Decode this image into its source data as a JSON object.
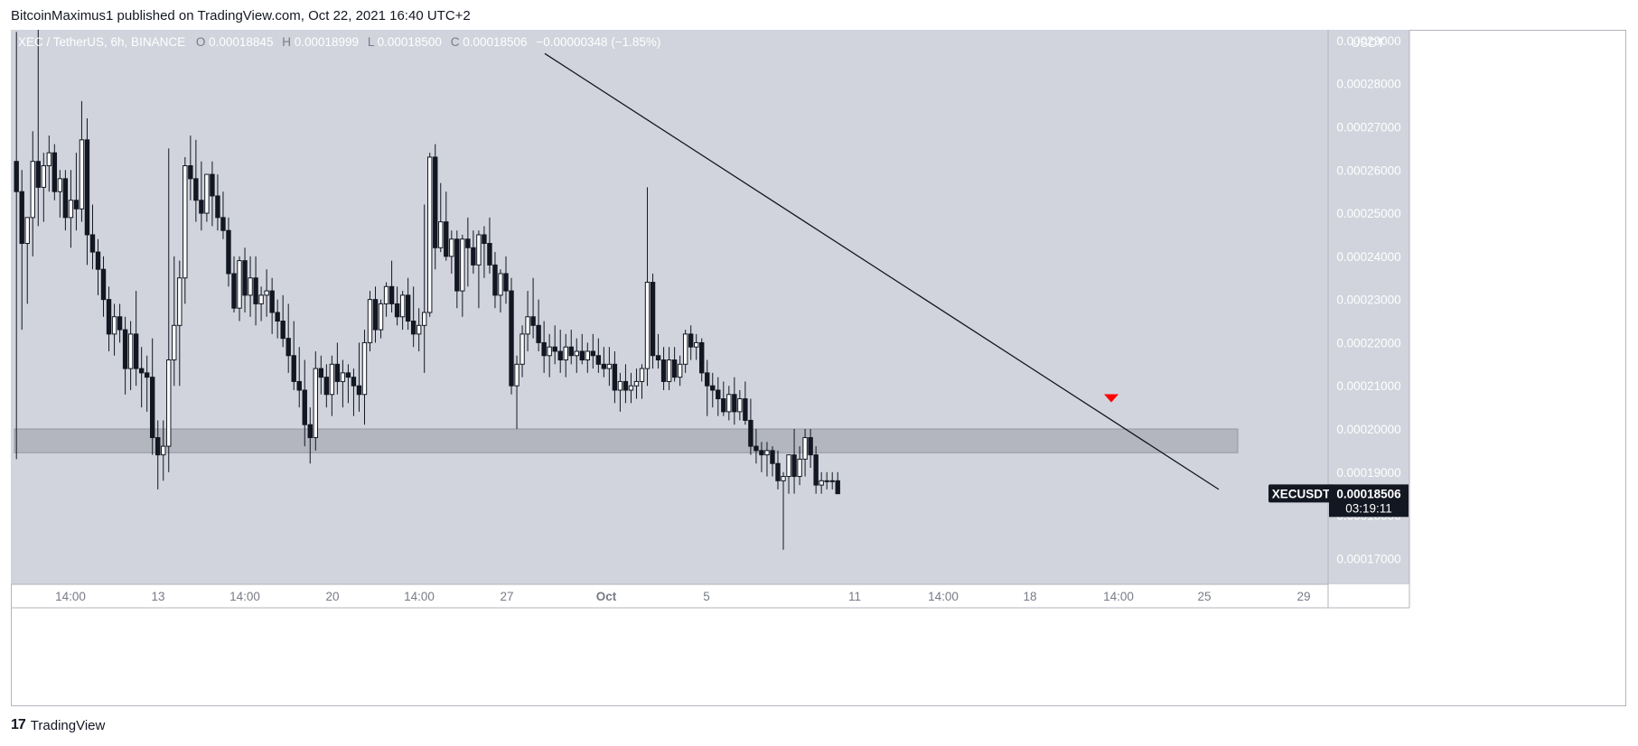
{
  "header": {
    "text": "BitcoinMaximus1 published on TradingView.com, Oct 22, 2021 16:40 UTC+2"
  },
  "footer": {
    "brand": "TradingView",
    "brand_mark": "17"
  },
  "colors": {
    "plot_bg": "#d1d4dc",
    "axis_bg": "#d1d4dc",
    "candle": "#131722",
    "up_body": "#ffffff",
    "zone": "#b3b6bf",
    "trendline": "#131722",
    "marker": "#ff0000",
    "label_bg": "#131722",
    "label_text": "#ffffff"
  },
  "chart_data": {
    "type": "candlestick",
    "symbol_line": {
      "symbol": "XEC / TetherUS, 6h, BINANCE",
      "open_key": "O",
      "open": "0.00018845",
      "high_key": "H",
      "high": "0.00018999",
      "low_key": "L",
      "low": "0.00018500",
      "close_key": "C",
      "close": "0.00018506",
      "change": "−0.00000348 (−1.85%)"
    },
    "currency": "USDT",
    "ylim": [
      0.000164,
      0.0002925
    ],
    "y_ticks": [
      "0.00017000",
      "0.00018000",
      "0.00019000",
      "0.00020000",
      "0.00021000",
      "0.00022000",
      "0.00023000",
      "0.00024000",
      "0.00025000",
      "0.00026000",
      "0.00027000",
      "0.00028000",
      "0.00029000"
    ],
    "x_ticks": [
      "14:00",
      "13",
      "14:00",
      "20",
      "14:00",
      "27",
      "Oct",
      "5",
      "11",
      "14:00",
      "18",
      "14:00",
      "25",
      "29"
    ],
    "support_zone": [
      0.0001945,
      0.0002
    ],
    "resistance_line": {
      "from_price": 0.000287,
      "to_price": 0.000186
    },
    "last_price_label": {
      "symbol": "XECUSDT",
      "price": "0.00018506",
      "countdown": "03:19:11"
    },
    "candles": [
      [
        0.000262,
        0.000292,
        0.000193,
        0.000255
      ],
      [
        0.000255,
        0.00026,
        0.000223,
        0.000243
      ],
      [
        0.000243,
        0.000248,
        0.000229,
        0.000249
      ],
      [
        0.000249,
        0.000269,
        0.00024,
        0.000262
      ],
      [
        0.000262,
        0.000296,
        0.000247,
        0.000256
      ],
      [
        0.000256,
        0.000264,
        0.000248,
        0.000261
      ],
      [
        0.000261,
        0.000268,
        0.000255,
        0.000264
      ],
      [
        0.000264,
        0.000266,
        0.000253,
        0.000255
      ],
      [
        0.000255,
        0.00026,
        0.000249,
        0.000258
      ],
      [
        0.000258,
        0.00026,
        0.000246,
        0.000249
      ],
      [
        0.000249,
        0.00026,
        0.000242,
        0.000253
      ],
      [
        0.000253,
        0.000264,
        0.000246,
        0.000251
      ],
      [
        0.000251,
        0.000276,
        0.000248,
        0.000267
      ],
      [
        0.000267,
        0.000272,
        0.000238,
        0.000245
      ],
      [
        0.000245,
        0.000252,
        0.000237,
        0.000241
      ],
      [
        0.000241,
        0.000244,
        0.000231,
        0.000237
      ],
      [
        0.000237,
        0.00024,
        0.000226,
        0.00023
      ],
      [
        0.00023,
        0.000233,
        0.000218,
        0.000222
      ],
      [
        0.000222,
        0.000229,
        0.000217,
        0.000226
      ],
      [
        0.000226,
        0.000229,
        0.00022,
        0.000223
      ],
      [
        0.000223,
        0.000226,
        0.000208,
        0.000214
      ],
      [
        0.000214,
        0.000225,
        0.000209,
        0.000222
      ],
      [
        0.000222,
        0.000232,
        0.00021,
        0.000214
      ],
      [
        0.000214,
        0.000219,
        0.000205,
        0.000213
      ],
      [
        0.000213,
        0.000217,
        0.000204,
        0.000212
      ],
      [
        0.000212,
        0.000221,
        0.000194,
        0.000198
      ],
      [
        0.000198,
        0.000202,
        0.000186,
        0.000194
      ],
      [
        0.000194,
        0.000202,
        0.000188,
        0.000196
      ],
      [
        0.000196,
        0.000265,
        0.00019,
        0.000216
      ],
      [
        0.000216,
        0.00024,
        0.00021,
        0.000224
      ],
      [
        0.000224,
        0.000239,
        0.00021,
        0.000235
      ],
      [
        0.000235,
        0.000263,
        0.000229,
        0.000261
      ],
      [
        0.000261,
        0.000268,
        0.000253,
        0.000258
      ],
      [
        0.000258,
        0.000267,
        0.000248,
        0.000253
      ],
      [
        0.000253,
        0.000262,
        0.000246,
        0.00025
      ],
      [
        0.00025,
        0.000258,
        0.000248,
        0.000259
      ],
      [
        0.000259,
        0.000262,
        0.000247,
        0.000254
      ],
      [
        0.000254,
        0.000259,
        0.000246,
        0.000249
      ],
      [
        0.000249,
        0.000255,
        0.000244,
        0.000246
      ],
      [
        0.000246,
        0.000249,
        0.000233,
        0.000236
      ],
      [
        0.000236,
        0.00024,
        0.000227,
        0.000228
      ],
      [
        0.000228,
        0.00024,
        0.000225,
        0.000239
      ],
      [
        0.000239,
        0.000242,
        0.000227,
        0.000231
      ],
      [
        0.000231,
        0.00024,
        0.000226,
        0.000235
      ],
      [
        0.000235,
        0.00024,
        0.000224,
        0.000229
      ],
      [
        0.000229,
        0.000233,
        0.000225,
        0.000231
      ],
      [
        0.000231,
        0.000237,
        0.000226,
        0.000232
      ],
      [
        0.000232,
        0.000235,
        0.000222,
        0.000227
      ],
      [
        0.000227,
        0.00023,
        0.000221,
        0.000225
      ],
      [
        0.000225,
        0.000231,
        0.000219,
        0.000221
      ],
      [
        0.000221,
        0.000229,
        0.000213,
        0.000217
      ],
      [
        0.000217,
        0.000225,
        0.000209,
        0.000211
      ],
      [
        0.000211,
        0.000219,
        0.000205,
        0.000209
      ],
      [
        0.000209,
        0.000216,
        0.000196,
        0.000201
      ],
      [
        0.000201,
        0.000205,
        0.000192,
        0.000198
      ],
      [
        0.000198,
        0.000218,
        0.000195,
        0.000214
      ],
      [
        0.000214,
        0.000217,
        0.000208,
        0.000212
      ],
      [
        0.000212,
        0.000215,
        0.000205,
        0.000208
      ],
      [
        0.000208,
        0.000217,
        0.000203,
        0.000215
      ],
      [
        0.000215,
        0.00022,
        0.000208,
        0.000211
      ],
      [
        0.000211,
        0.000216,
        0.000205,
        0.000213
      ],
      [
        0.000213,
        0.000215,
        0.000206,
        0.000212
      ],
      [
        0.000212,
        0.000214,
        0.000203,
        0.00021
      ],
      [
        0.00021,
        0.00022,
        0.000204,
        0.000208
      ],
      [
        0.000208,
        0.000223,
        0.000201,
        0.00022
      ],
      [
        0.00022,
        0.000232,
        0.000218,
        0.00023
      ],
      [
        0.00023,
        0.000233,
        0.00022,
        0.000223
      ],
      [
        0.000223,
        0.00023,
        0.000221,
        0.000229
      ],
      [
        0.000229,
        0.000234,
        0.000226,
        0.000233
      ],
      [
        0.000233,
        0.000239,
        0.000227,
        0.000229
      ],
      [
        0.000229,
        0.000233,
        0.000224,
        0.000226
      ],
      [
        0.000226,
        0.000232,
        0.000223,
        0.000231
      ],
      [
        0.000231,
        0.000235,
        0.000223,
        0.000225
      ],
      [
        0.000225,
        0.000233,
        0.000219,
        0.000222
      ],
      [
        0.000222,
        0.000228,
        0.000218,
        0.000224
      ],
      [
        0.000224,
        0.000252,
        0.000213,
        0.000227
      ],
      [
        0.000227,
        0.000264,
        0.000226,
        0.000263
      ],
      [
        0.000263,
        0.000266,
        0.000237,
        0.000242
      ],
      [
        0.000242,
        0.000257,
        0.000241,
        0.000248
      ],
      [
        0.000248,
        0.000255,
        0.000239,
        0.00024
      ],
      [
        0.00024,
        0.000246,
        0.000236,
        0.000244
      ],
      [
        0.000244,
        0.000246,
        0.000228,
        0.000232
      ],
      [
        0.000232,
        0.000245,
        0.000226,
        0.000244
      ],
      [
        0.000244,
        0.000249,
        0.000233,
        0.000242
      ],
      [
        0.000242,
        0.000246,
        0.000236,
        0.000238
      ],
      [
        0.000238,
        0.000246,
        0.000228,
        0.000245
      ],
      [
        0.000245,
        0.000247,
        0.000235,
        0.000243
      ],
      [
        0.000243,
        0.000249,
        0.000236,
        0.000238
      ],
      [
        0.000238,
        0.000241,
        0.000228,
        0.000231
      ],
      [
        0.000231,
        0.000237,
        0.000227,
        0.000236
      ],
      [
        0.000236,
        0.00024,
        0.000229,
        0.000232
      ],
      [
        0.000232,
        0.000235,
        0.000208,
        0.00021
      ],
      [
        0.00021,
        0.000217,
        0.0002,
        0.000215
      ],
      [
        0.000215,
        0.000224,
        0.000212,
        0.000222
      ],
      [
        0.000222,
        0.000232,
        0.000218,
        0.000226
      ],
      [
        0.000226,
        0.000235,
        0.000221,
        0.000224
      ],
      [
        0.000224,
        0.00023,
        0.000218,
        0.00022
      ],
      [
        0.00022,
        0.000225,
        0.000213,
        0.000217
      ],
      [
        0.000217,
        0.000222,
        0.000212,
        0.000219
      ],
      [
        0.000219,
        0.000224,
        0.000215,
        0.000218
      ],
      [
        0.000218,
        0.000223,
        0.000213,
        0.000216
      ],
      [
        0.000216,
        0.000222,
        0.000212,
        0.000219
      ],
      [
        0.000219,
        0.000223,
        0.000215,
        0.000217
      ],
      [
        0.000217,
        0.000221,
        0.000213,
        0.000218
      ],
      [
        0.000218,
        0.000222,
        0.000215,
        0.000216
      ],
      [
        0.000216,
        0.00022,
        0.000213,
        0.000218
      ],
      [
        0.000218,
        0.000222,
        0.000214,
        0.000217
      ],
      [
        0.000217,
        0.000221,
        0.000213,
        0.000215
      ],
      [
        0.000215,
        0.000219,
        0.000212,
        0.000214
      ],
      [
        0.000214,
        0.000219,
        0.00021,
        0.000215
      ],
      [
        0.000215,
        0.000218,
        0.000206,
        0.000209
      ],
      [
        0.000209,
        0.000213,
        0.000204,
        0.000211
      ],
      [
        0.000211,
        0.000215,
        0.000206,
        0.000209
      ],
      [
        0.000209,
        0.000213,
        0.000206,
        0.00021
      ],
      [
        0.00021,
        0.000214,
        0.000207,
        0.000211
      ],
      [
        0.000211,
        0.000215,
        0.000207,
        0.000214
      ],
      [
        0.000214,
        0.000256,
        0.00021,
        0.000234
      ],
      [
        0.000234,
        0.000236,
        0.000214,
        0.000217
      ],
      [
        0.000217,
        0.000222,
        0.000214,
        0.000216
      ],
      [
        0.000216,
        0.000219,
        0.000209,
        0.000211
      ],
      [
        0.000211,
        0.000219,
        0.000209,
        0.000216
      ],
      [
        0.000216,
        0.000219,
        0.000211,
        0.000212
      ],
      [
        0.000212,
        0.000217,
        0.00021,
        0.000215
      ],
      [
        0.000215,
        0.000223,
        0.000213,
        0.000222
      ],
      [
        0.000222,
        0.000224,
        0.000216,
        0.000219
      ],
      [
        0.000219,
        0.000222,
        0.000216,
        0.00022
      ],
      [
        0.00022,
        0.000221,
        0.000211,
        0.000213
      ],
      [
        0.000213,
        0.000216,
        0.000203,
        0.00021
      ],
      [
        0.00021,
        0.000213,
        0.000205,
        0.000209
      ],
      [
        0.000209,
        0.000212,
        0.000203,
        0.000207
      ],
      [
        0.000207,
        0.000211,
        0.000203,
        0.000204
      ],
      [
        0.000204,
        0.00021,
        0.000202,
        0.000208
      ],
      [
        0.000208,
        0.000212,
        0.000201,
        0.000204
      ],
      [
        0.000204,
        0.000209,
        0.000202,
        0.000207
      ],
      [
        0.000207,
        0.000211,
        0.000201,
        0.000202
      ],
      [
        0.000202,
        0.000207,
        0.000194,
        0.000196
      ],
      [
        0.000196,
        0.0002,
        0.000192,
        0.000195
      ],
      [
        0.000195,
        0.000197,
        0.00019,
        0.000194
      ],
      [
        0.000194,
        0.000197,
        0.000189,
        0.000195
      ],
      [
        0.000195,
        0.000196,
        0.000189,
        0.000192
      ],
      [
        0.000192,
        0.000195,
        0.000186,
        0.000188
      ],
      [
        0.000188,
        0.00019,
        0.000172,
        0.000189
      ],
      [
        0.000189,
        0.000194,
        0.000185,
        0.000194
      ],
      [
        0.000194,
        0.0002,
        0.000185,
        0.000189
      ],
      [
        0.000189,
        0.000196,
        0.000187,
        0.000193
      ],
      [
        0.000193,
        0.0002,
        0.000189,
        0.000198
      ],
      [
        0.000198,
        0.0002,
        0.000191,
        0.000194
      ],
      [
        0.000194,
        0.000196,
        0.000185,
        0.000187
      ],
      [
        0.000187,
        0.00019,
        0.000185,
        0.000188
      ],
      [
        0.000188,
        0.00019,
        0.000186,
        0.000188
      ],
      [
        0.000188,
        0.00019,
        0.000186,
        0.000188
      ],
      [
        0.000188,
        0.00019,
        0.000185,
        0.000185
      ]
    ]
  }
}
